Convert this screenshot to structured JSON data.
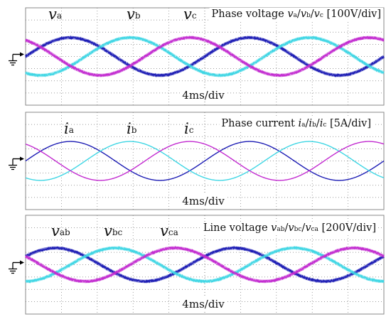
{
  "colors": {
    "series_a": "#1c1cb4",
    "series_b": "#3fd6e4",
    "series_c": "#c22bd0",
    "grid": "#7a7a7a",
    "frame": "#888888",
    "text": "#111111"
  },
  "chart_data": [
    {
      "type": "line",
      "label_prefix": "Phase voltage",
      "label_vars": [
        "v",
        "a",
        "/",
        "v",
        "b",
        "/",
        "v",
        "c"
      ],
      "label_scale": "[100V/div]",
      "time_scale": "4ms/div",
      "x_unit": "ms",
      "xlim": [
        0,
        40
      ],
      "ylim": [
        -4,
        4
      ],
      "grid": true,
      "series": [
        {
          "name": "va",
          "symbol": "v",
          "subscript": "a",
          "amplitude": 1.55,
          "phase_deg": 0,
          "noisy": true,
          "color_key": "series_a"
        },
        {
          "name": "vb",
          "symbol": "v",
          "subscript": "b",
          "amplitude": 1.55,
          "phase_deg": -120,
          "noisy": true,
          "color_key": "series_b"
        },
        {
          "name": "vc",
          "symbol": "v",
          "subscript": "c",
          "amplitude": 1.55,
          "phase_deg": 120,
          "noisy": true,
          "color_key": "series_c"
        }
      ],
      "period_ms": 20
    },
    {
      "type": "line",
      "label_prefix": "Phase current",
      "label_vars": [
        "i",
        "a",
        "/",
        "i",
        "b",
        "/",
        "i",
        "c"
      ],
      "label_scale": "[5A/div]",
      "time_scale": "4ms/div",
      "x_unit": "ms",
      "xlim": [
        0,
        40
      ],
      "ylim": [
        -4,
        4
      ],
      "grid": true,
      "series": [
        {
          "name": "ia",
          "symbol": "i",
          "subscript": "a",
          "amplitude": 1.6,
          "phase_deg": 0,
          "noisy": false,
          "color_key": "series_a"
        },
        {
          "name": "ib",
          "symbol": "i",
          "subscript": "b",
          "amplitude": 1.6,
          "phase_deg": -120,
          "noisy": false,
          "color_key": "series_b"
        },
        {
          "name": "ic",
          "symbol": "i",
          "subscript": "c",
          "amplitude": 1.6,
          "phase_deg": 120,
          "noisy": false,
          "color_key": "series_c"
        }
      ],
      "period_ms": 20
    },
    {
      "type": "line",
      "label_prefix": "Line voltage",
      "label_vars": [
        "v",
        "ab",
        "/",
        "v",
        "bc",
        "/",
        "v",
        "ca"
      ],
      "label_scale": "[200V/div]",
      "time_scale": "4ms/div",
      "x_unit": "ms",
      "xlim": [
        0,
        40
      ],
      "ylim": [
        -4,
        4
      ],
      "grid": true,
      "series": [
        {
          "name": "vab",
          "symbol": "v",
          "subscript": "ab",
          "amplitude": 1.35,
          "phase_deg": 30,
          "noisy": true,
          "color_key": "series_a"
        },
        {
          "name": "vbc",
          "symbol": "v",
          "subscript": "bc",
          "amplitude": 1.35,
          "phase_deg": -90,
          "noisy": true,
          "color_key": "series_b"
        },
        {
          "name": "vca",
          "symbol": "v",
          "subscript": "ca",
          "amplitude": 1.35,
          "phase_deg": 150,
          "noisy": true,
          "color_key": "series_c"
        }
      ],
      "period_ms": 20
    }
  ]
}
